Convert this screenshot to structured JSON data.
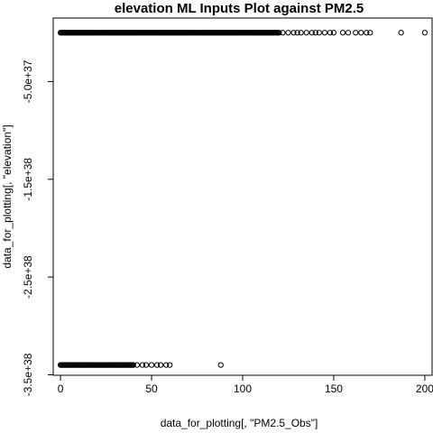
{
  "chart_data": {
    "type": "scatter",
    "title": "elevation ML Inputs Plot against PM2.5",
    "xlabel": "data_for_plotting[, \"PM2.5_Obs\"]",
    "ylabel": "data_for_plotting[, \"elevation\"]",
    "xlim": [
      -4,
      204
    ],
    "ylim": [
      -3.505e+38,
      1.5e+37
    ],
    "x_ticks": [
      0,
      50,
      100,
      150,
      200
    ],
    "x_tick_labels": [
      "0",
      "50",
      "100",
      "150",
      "200"
    ],
    "y_ticks": [
      -5e+37,
      -1.5e+38,
      -2.5e+38,
      -3.5e+38
    ],
    "y_tick_labels": [
      "-5.0e+37",
      "-1.5e+38",
      "-2.5e+38",
      "-3.5e+38"
    ],
    "grid": false,
    "marker": "open-circle",
    "series": [
      {
        "y": 0,
        "x_range": [
          0,
          120
        ],
        "step": 0.5,
        "extra_x": [
          122,
          125,
          128,
          130,
          132,
          135,
          138,
          140,
          142,
          145,
          148,
          150,
          155,
          158,
          162,
          165,
          168,
          170,
          187,
          200
        ]
      },
      {
        "y": -3.4e+38,
        "x_range": [
          0,
          40
        ],
        "step": 0.5,
        "extra_x": [
          42,
          45,
          47,
          50,
          53,
          55,
          58,
          60,
          88
        ]
      }
    ]
  }
}
